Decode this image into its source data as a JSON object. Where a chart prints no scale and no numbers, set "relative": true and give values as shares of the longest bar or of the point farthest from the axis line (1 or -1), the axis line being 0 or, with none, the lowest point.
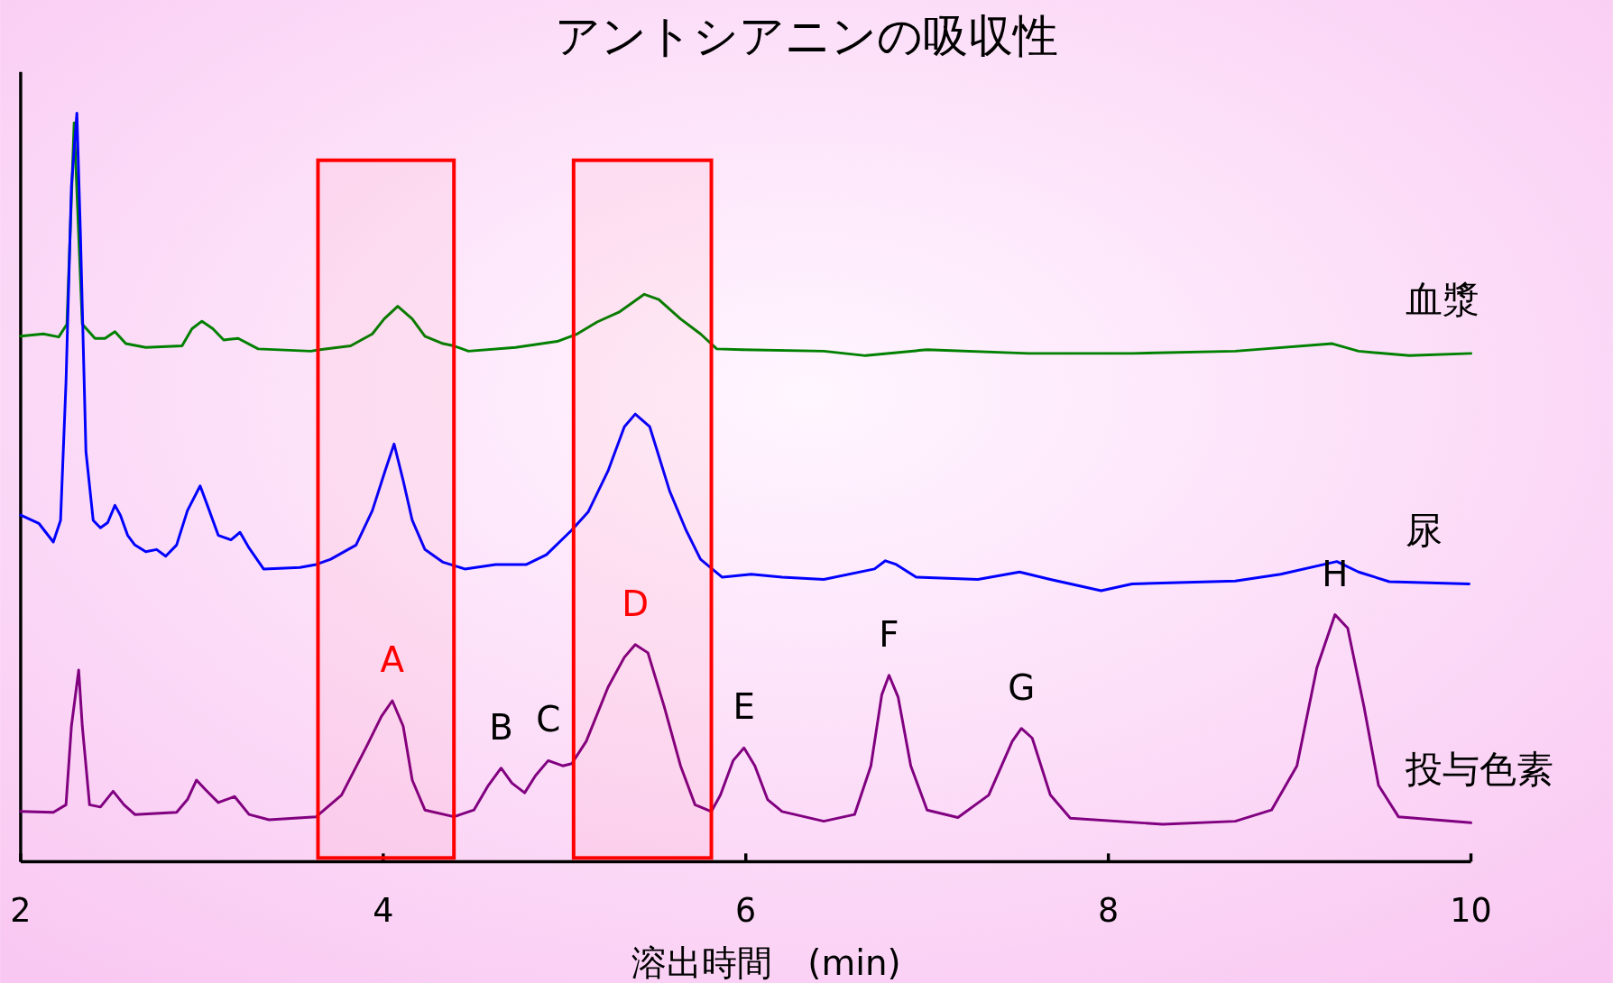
{
  "chart_data": {
    "type": "line",
    "title": "アントシアニンの吸収性",
    "xlabel": "溶出時間　(min)",
    "relative": true,
    "xlim": [
      2,
      10
    ],
    "xticks": [
      2,
      4,
      6,
      8,
      10
    ],
    "series": [
      {
        "name": "血漿",
        "color": "#008000",
        "x": [
          2.0,
          2.125,
          2.21,
          2.255,
          2.295,
          2.34,
          2.41,
          2.465,
          2.52,
          2.58,
          2.69,
          2.89,
          2.945,
          3.0,
          3.06,
          3.12,
          3.2,
          3.31,
          3.6,
          3.65,
          3.82,
          3.94,
          4.005,
          4.08,
          4.16,
          4.23,
          4.33,
          4.39,
          4.47,
          4.73,
          4.96,
          5.07,
          5.18,
          5.3,
          5.44,
          5.52,
          5.64,
          5.75,
          5.84,
          5.98,
          6.43,
          6.66,
          7.0,
          7.56,
          8.13,
          8.7,
          9.235,
          9.38,
          9.66,
          10.0
        ],
        "values": [
          0.702,
          0.705,
          0.701,
          0.718,
          0.987,
          0.718,
          0.699,
          0.699,
          0.708,
          0.692,
          0.687,
          0.689,
          0.712,
          0.722,
          0.712,
          0.697,
          0.699,
          0.685,
          0.682,
          0.684,
          0.689,
          0.705,
          0.725,
          0.742,
          0.725,
          0.702,
          0.692,
          0.689,
          0.682,
          0.687,
          0.695,
          0.705,
          0.721,
          0.734,
          0.758,
          0.751,
          0.725,
          0.705,
          0.685,
          0.684,
          0.682,
          0.676,
          0.684,
          0.679,
          0.679,
          0.682,
          0.692,
          0.682,
          0.676,
          0.679
        ]
      },
      {
        "name": "尿",
        "color": "#0000ff",
        "x": [
          2.0,
          2.1,
          2.18,
          2.22,
          2.25,
          2.28,
          2.31,
          2.33,
          2.36,
          2.4,
          2.44,
          2.48,
          2.52,
          2.55,
          2.59,
          2.63,
          2.69,
          2.75,
          2.8,
          2.86,
          2.92,
          2.99,
          3.03,
          3.09,
          3.16,
          3.21,
          3.26,
          3.34,
          3.54,
          3.63,
          3.71,
          3.85,
          3.94,
          4.01,
          4.06,
          4.11,
          4.16,
          4.23,
          4.33,
          4.45,
          4.62,
          4.79,
          4.9,
          5.04,
          5.13,
          5.24,
          5.33,
          5.39,
          5.47,
          5.58,
          5.67,
          5.75,
          5.87,
          6.03,
          6.2,
          6.43,
          6.71,
          6.77,
          6.83,
          6.94,
          7.28,
          7.51,
          7.68,
          7.96,
          8.13,
          8.7,
          8.95,
          9.26,
          9.38,
          9.55,
          9.99
        ],
        "values": [
          0.463,
          0.452,
          0.427,
          0.456,
          0.64,
          0.902,
          1.0,
          0.836,
          0.548,
          0.456,
          0.446,
          0.453,
          0.476,
          0.463,
          0.436,
          0.423,
          0.414,
          0.417,
          0.408,
          0.423,
          0.469,
          0.502,
          0.476,
          0.436,
          0.43,
          0.44,
          0.419,
          0.391,
          0.393,
          0.397,
          0.404,
          0.423,
          0.469,
          0.522,
          0.558,
          0.509,
          0.456,
          0.417,
          0.4,
          0.391,
          0.397,
          0.397,
          0.41,
          0.443,
          0.467,
          0.522,
          0.581,
          0.598,
          0.581,
          0.495,
          0.443,
          0.404,
          0.38,
          0.384,
          0.38,
          0.377,
          0.391,
          0.402,
          0.397,
          0.38,
          0.377,
          0.387,
          0.377,
          0.362,
          0.371,
          0.375,
          0.384,
          0.401,
          0.387,
          0.374,
          0.371
        ]
      },
      {
        "name": "投与色素",
        "color": "#800080",
        "x": [
          2.0,
          2.18,
          2.25,
          2.28,
          2.32,
          2.34,
          2.38,
          2.44,
          2.51,
          2.57,
          2.63,
          2.86,
          2.92,
          2.97,
          3.02,
          3.09,
          3.18,
          3.26,
          3.37,
          3.63,
          3.77,
          3.91,
          3.99,
          4.05,
          4.11,
          4.16,
          4.23,
          4.39,
          4.5,
          4.58,
          4.65,
          4.71,
          4.78,
          4.84,
          4.91,
          4.99,
          5.04,
          5.12,
          5.24,
          5.33,
          5.39,
          5.46,
          5.55,
          5.64,
          5.72,
          5.81,
          5.86,
          5.93,
          5.99,
          6.05,
          6.12,
          6.2,
          6.43,
          6.6,
          6.69,
          6.75,
          6.79,
          6.84,
          6.91,
          7.0,
          7.17,
          7.34,
          7.47,
          7.52,
          7.58,
          7.68,
          7.79,
          8.3,
          8.7,
          8.9,
          9.04,
          9.15,
          9.25,
          9.32,
          9.41,
          9.49,
          9.6,
          10.0
        ],
        "values": [
          0.067,
          0.066,
          0.076,
          0.181,
          0.256,
          0.181,
          0.076,
          0.073,
          0.094,
          0.076,
          0.063,
          0.066,
          0.083,
          0.109,
          0.096,
          0.079,
          0.087,
          0.063,
          0.056,
          0.06,
          0.089,
          0.155,
          0.194,
          0.215,
          0.181,
          0.109,
          0.069,
          0.06,
          0.069,
          0.102,
          0.125,
          0.105,
          0.092,
          0.115,
          0.135,
          0.128,
          0.131,
          0.161,
          0.233,
          0.273,
          0.29,
          0.279,
          0.207,
          0.128,
          0.076,
          0.067,
          0.089,
          0.135,
          0.152,
          0.128,
          0.083,
          0.067,
          0.054,
          0.063,
          0.128,
          0.223,
          0.249,
          0.22,
          0.128,
          0.069,
          0.059,
          0.089,
          0.161,
          0.178,
          0.165,
          0.089,
          0.058,
          0.05,
          0.054,
          0.069,
          0.128,
          0.259,
          0.33,
          0.312,
          0.207,
          0.102,
          0.06,
          0.052
        ]
      }
    ],
    "bands": [
      {
        "axis": "x",
        "from": 3.64,
        "to": 4.39,
        "color": "#ff0000"
      },
      {
        "axis": "x",
        "from": 5.05,
        "to": 5.81,
        "color": "#ff0000"
      }
    ],
    "annotations": [
      {
        "text": "A",
        "x": 4.05,
        "y": 0.215
      },
      {
        "text": "B",
        "x": 4.65,
        "y": 0.125
      },
      {
        "text": "C",
        "x": 4.91,
        "y": 0.135
      },
      {
        "text": "D",
        "x": 5.39,
        "y": 0.29
      },
      {
        "text": "E",
        "x": 5.99,
        "y": 0.152
      },
      {
        "text": "F",
        "x": 6.79,
        "y": 0.249
      },
      {
        "text": "G",
        "x": 7.52,
        "y": 0.178
      },
      {
        "text": "H",
        "x": 9.25,
        "y": 0.33
      }
    ]
  }
}
